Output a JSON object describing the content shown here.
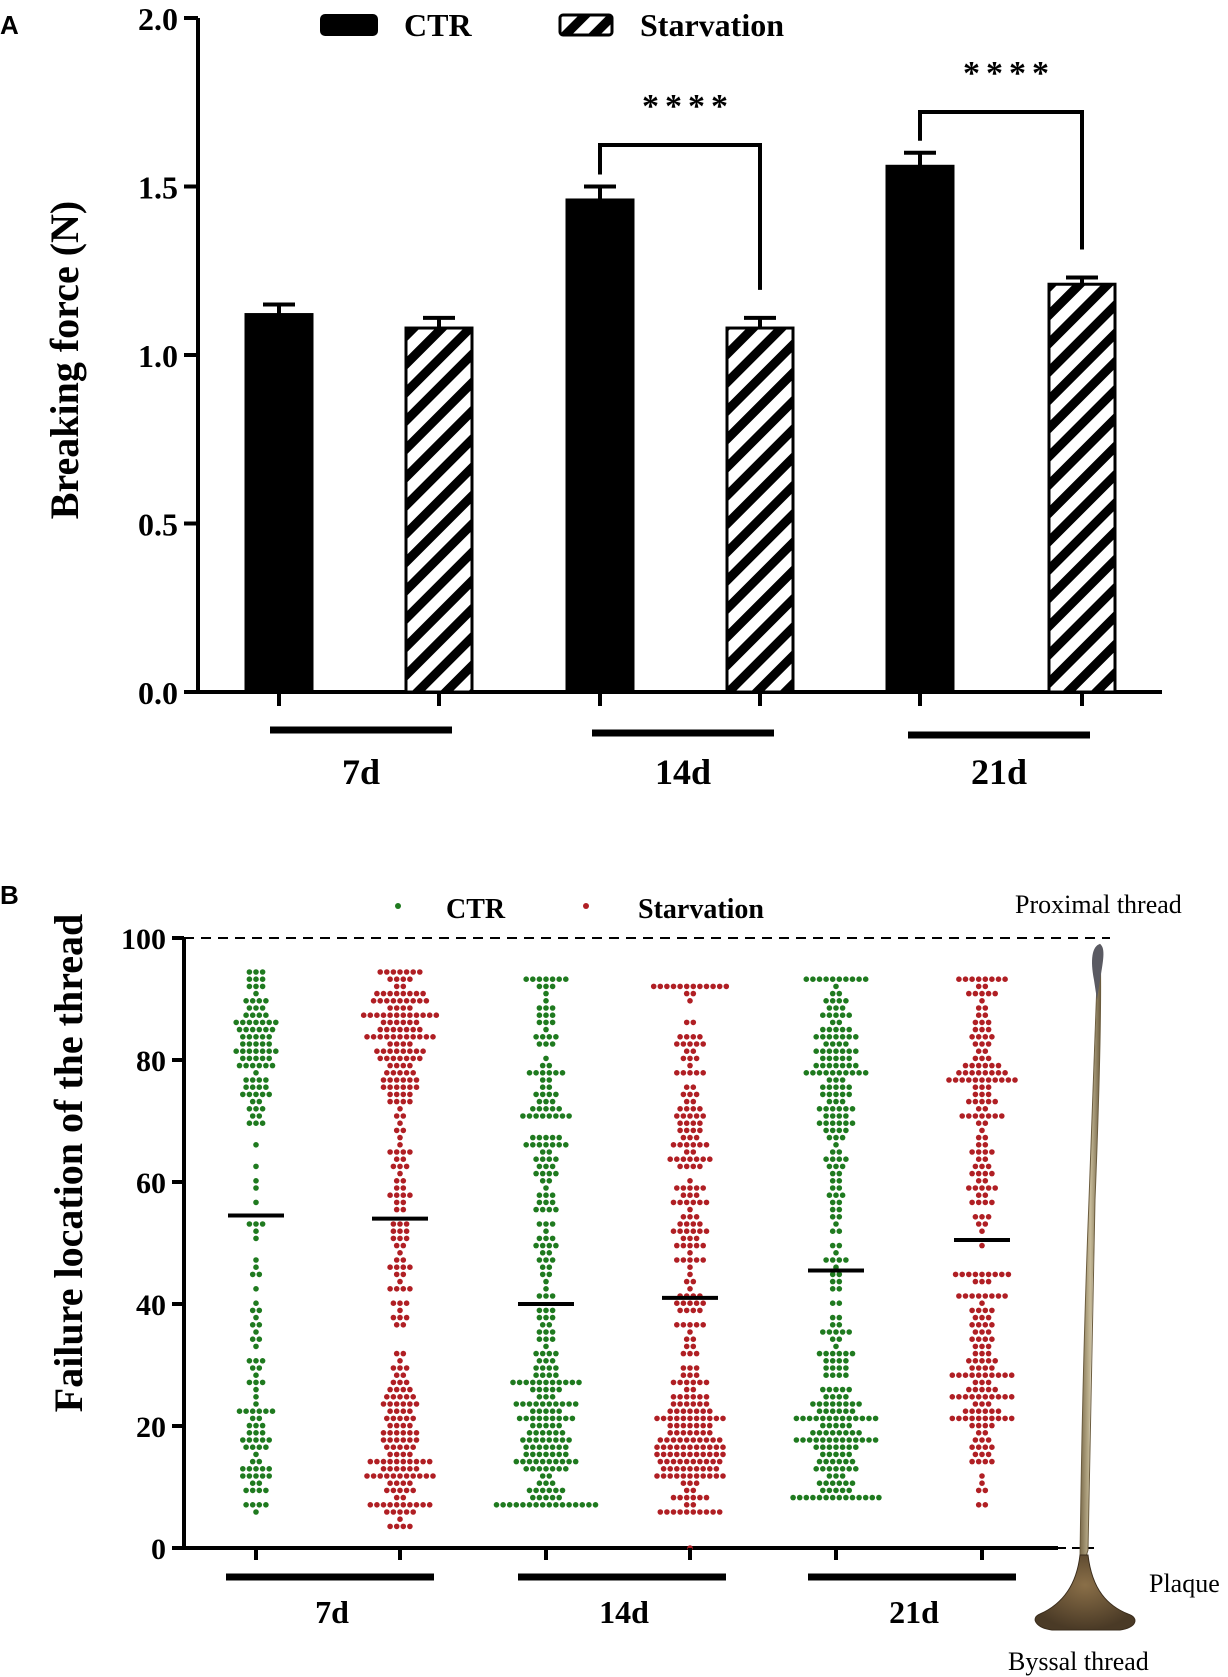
{
  "panels": {
    "a_label": "A",
    "b_label": "B"
  },
  "colors": {
    "ctr_bar": "#000000",
    "ctr_dot": "#1f7a1f",
    "starvation_dot": "#b01f24"
  },
  "chart_data": [
    {
      "type": "bar",
      "panel": "A",
      "ylabel": "Breaking force (N)",
      "ylim": [
        0,
        2.0
      ],
      "yticks": [
        0.0,
        0.5,
        1.0,
        1.5,
        2.0
      ],
      "ytick_labels": [
        "0.0",
        "0.5",
        "1.0",
        "1.5",
        "2.0"
      ],
      "groups": [
        "7d",
        "14d",
        "21d"
      ],
      "legend": [
        "CTR",
        "Starvation"
      ],
      "legend_position": "top",
      "series": [
        {
          "name": "CTR",
          "fill": "solid",
          "values": [
            1.12,
            1.46,
            1.56
          ],
          "errors": [
            0.03,
            0.04,
            0.04
          ]
        },
        {
          "name": "Starvation",
          "fill": "hatched",
          "values": [
            1.08,
            1.08,
            1.21
          ],
          "errors": [
            0.03,
            0.03,
            0.02
          ]
        }
      ],
      "significance": [
        {
          "group": "14d",
          "label": "****"
        },
        {
          "group": "21d",
          "label": "****"
        }
      ]
    },
    {
      "type": "scatter",
      "panel": "B",
      "ylabel": "Failure location of the thread",
      "ylim": [
        0,
        100
      ],
      "yticks": [
        0,
        20,
        40,
        60,
        80,
        100
      ],
      "ytick_labels": [
        "0",
        "20",
        "40",
        "60",
        "80",
        "100"
      ],
      "groups": [
        "7d",
        "14d",
        "21d"
      ],
      "legend": [
        "CTR",
        "Starvation"
      ],
      "legend_position": "top",
      "columns": [
        {
          "group": "7d",
          "series": "CTR",
          "median": 54.5,
          "min": 5,
          "max": 95,
          "n": 170,
          "clusters": [
            {
              "c": 82,
              "s": 7,
              "w": 0.45
            },
            {
              "c": 20,
              "s": 8,
              "w": 0.35
            },
            {
              "c": 50,
              "s": 20,
              "w": 0.2
            }
          ]
        },
        {
          "group": "7d",
          "series": "Starvation",
          "median": 54,
          "min": 4,
          "max": 95,
          "n": 300,
          "clusters": [
            {
              "c": 84,
              "s": 6,
              "w": 0.35
            },
            {
              "c": 15,
              "s": 7,
              "w": 0.3
            },
            {
              "c": 50,
              "s": 22,
              "w": 0.35
            }
          ]
        },
        {
          "group": "14d",
          "series": "CTR",
          "median": 40,
          "min": 7,
          "max": 93,
          "n": 280,
          "clusters": [
            {
              "c": 18,
              "s": 8,
              "w": 0.5
            },
            {
              "c": 75,
              "s": 12,
              "w": 0.3
            },
            {
              "c": 50,
              "s": 15,
              "w": 0.2
            }
          ]
        },
        {
          "group": "14d",
          "series": "Starvation",
          "median": 41,
          "min": 6,
          "max": 92,
          "n": 300,
          "clusters": [
            {
              "c": 16,
              "s": 7,
              "w": 0.45
            },
            {
              "c": 70,
              "s": 15,
              "w": 0.35
            },
            {
              "c": 40,
              "s": 12,
              "w": 0.2
            }
          ]
        },
        {
          "group": "21d",
          "series": "CTR",
          "median": 45.5,
          "min": 8,
          "max": 93,
          "n": 300,
          "clusters": [
            {
              "c": 20,
              "s": 8,
              "w": 0.45
            },
            {
              "c": 78,
              "s": 10,
              "w": 0.35
            },
            {
              "c": 50,
              "s": 15,
              "w": 0.2
            }
          ]
        },
        {
          "group": "21d",
          "series": "Starvation",
          "median": 50.5,
          "min": 7,
          "max": 93,
          "n": 250,
          "clusters": [
            {
              "c": 25,
              "s": 8,
              "w": 0.4
            },
            {
              "c": 78,
              "s": 10,
              "w": 0.4
            },
            {
              "c": 50,
              "s": 15,
              "w": 0.2
            }
          ]
        }
      ],
      "reference_line": {
        "y": 100,
        "style": "dashed"
      },
      "annotations": [
        "Proximal thread",
        "Plaque",
        "Byssal thread"
      ]
    }
  ]
}
